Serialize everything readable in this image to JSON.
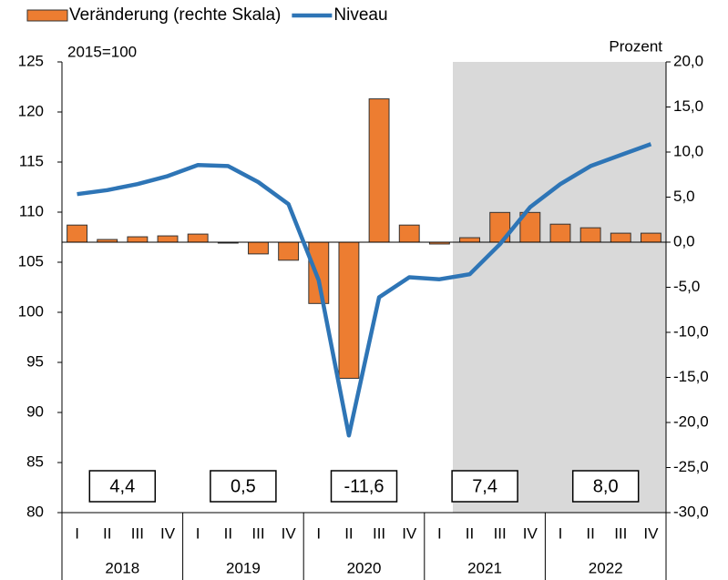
{
  "chart_data": {
    "type": "bar_line",
    "y_axis_label": "2015=100",
    "y2_axis_label": "Prozent",
    "categories": [
      "I",
      "II",
      "III",
      "IV",
      "I",
      "II",
      "III",
      "IV",
      "I",
      "II",
      "III",
      "IV",
      "I",
      "II",
      "III",
      "IV",
      "I",
      "II",
      "III",
      "IV"
    ],
    "years": [
      "2018",
      "2019",
      "2020",
      "2021",
      "2022"
    ],
    "series": [
      {
        "name": "Veränderung (rechte Skala)",
        "color": "#ED7D31",
        "axis": "y2",
        "kind": "bar",
        "values": [
          1.9,
          0.3,
          0.6,
          0.7,
          0.9,
          -0.1,
          -1.3,
          -2.0,
          -6.8,
          -15.1,
          15.9,
          1.9,
          -0.2,
          0.5,
          3.3,
          3.3,
          2.0,
          1.6,
          1.0,
          1.0
        ]
      },
      {
        "name": "Niveau",
        "color": "#2E75B6",
        "axis": "y",
        "kind": "line",
        "values": [
          111.8,
          112.2,
          112.8,
          113.6,
          114.7,
          114.6,
          113.0,
          110.8,
          103.2,
          87.7,
          101.5,
          103.5,
          103.3,
          103.8,
          106.8,
          110.5,
          112.8,
          114.6,
          115.7,
          116.8
        ]
      }
    ],
    "annual": {
      "values": [
        4.4,
        0.5,
        -11.6,
        7.4,
        8.0
      ],
      "value_labels": [
        "4,4",
        "0,5",
        "-11,6",
        "7,4",
        "8,0"
      ]
    },
    "ylim": [
      80,
      125
    ],
    "yticks": [
      80,
      85,
      90,
      95,
      100,
      105,
      110,
      115,
      120,
      125
    ],
    "y2lim": [
      -30,
      20
    ],
    "y2ticks": [
      {
        "value": -30,
        "label": "-30,0"
      },
      {
        "value": -25,
        "label": "-25,0"
      },
      {
        "value": -20,
        "label": "-20,0"
      },
      {
        "value": -15,
        "label": "-15,0"
      },
      {
        "value": -10,
        "label": "-10,0"
      },
      {
        "value": -5,
        "label": "-5,0"
      },
      {
        "value": 0,
        "label": "0,0"
      },
      {
        "value": 5,
        "label": "5,0"
      },
      {
        "value": 10,
        "label": "10,0"
      },
      {
        "value": 15,
        "label": "15,0"
      },
      {
        "value": 20,
        "label": "20,0"
      }
    ]
  }
}
